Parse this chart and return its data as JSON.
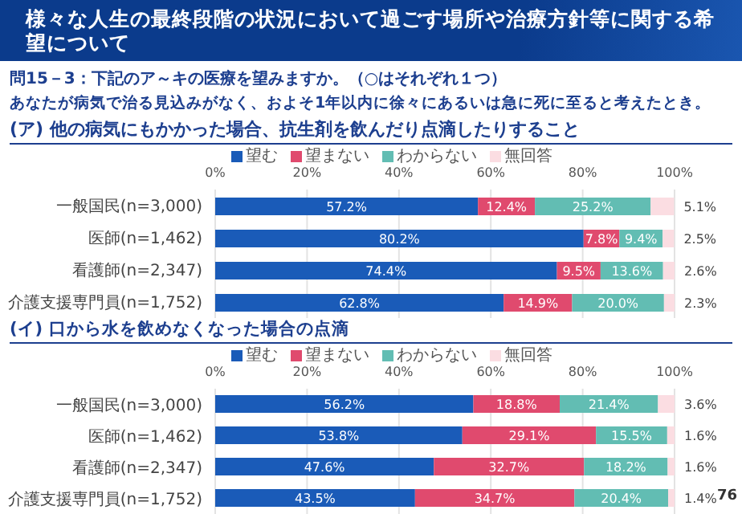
{
  "chart_data": [
    {
      "type": "bar",
      "orientation": "horizontal",
      "stacked": true,
      "title": "様々な人生の最終段階の状況において過ごす場所や治療方針等に関する希望について",
      "subtitle": "問15－3：下記のア～キの医療を望みますか。（○はそれぞれ１つ）",
      "annotations": [
        "あなたが病気で治る見込みがなく、およそ1年以内に徐々にあるいは急に死に至ると考えたとき。",
        "(ア) 他の病気にもかかった場合、抗生剤を飲んだり点滴したりすること"
      ],
      "categories": [
        "一般国民(n=3,000)",
        "医師(n=1,462)",
        "看護師(n=2,347)",
        "介護支援専門員(n=1,752)"
      ],
      "xlim": [
        0,
        100
      ],
      "xticks": [
        {
          "value": 0,
          "label": "0%"
        },
        {
          "value": 20,
          "label": "20%"
        },
        {
          "value": 40,
          "label": "40%"
        },
        {
          "value": 60,
          "label": "60%"
        },
        {
          "value": 80,
          "label": "80%"
        },
        {
          "value": 100,
          "label": "100%"
        }
      ],
      "grid": "x",
      "legend": "top",
      "series": [
        {
          "name": "望む",
          "color": "#1a5bb8",
          "values": [
            57.2,
            80.2,
            74.4,
            62.8
          ],
          "value_labels": [
            "57.2%",
            "80.2%",
            "74.4%",
            "62.8%"
          ]
        },
        {
          "name": "望まない",
          "color": "#e04a6e",
          "values": [
            12.4,
            7.8,
            9.5,
            14.9
          ],
          "value_labels": [
            "12.4%",
            "7.8%",
            "9.5%",
            "14.9%"
          ]
        },
        {
          "name": "わからない",
          "color": "#62bdb3",
          "values": [
            25.2,
            9.4,
            13.6,
            20.0
          ],
          "value_labels": [
            "25.2%",
            "9.4%",
            "13.6%",
            "20.0%"
          ]
        },
        {
          "name": "無回答",
          "color": "#fbdde2",
          "values": [
            5.1,
            2.5,
            2.6,
            2.3
          ],
          "value_labels": [
            "5.1%",
            "2.5%",
            "2.6%",
            "2.3%"
          ]
        }
      ]
    },
    {
      "type": "bar",
      "orientation": "horizontal",
      "stacked": true,
      "title": "(イ) 口から水を飲めなくなった場合の点滴",
      "annotations": [
        "76"
      ],
      "categories": [
        "一般国民(n=3,000)",
        "医師(n=1,462)",
        "看護師(n=2,347)",
        "介護支援専門員(n=1,752)"
      ],
      "xlim": [
        0,
        100
      ],
      "xticks": [
        {
          "value": 0,
          "label": "0%"
        },
        {
          "value": 20,
          "label": "20%"
        },
        {
          "value": 40,
          "label": "40%"
        },
        {
          "value": 60,
          "label": "60%"
        },
        {
          "value": 80,
          "label": "80%"
        },
        {
          "value": 100,
          "label": "100%"
        }
      ],
      "grid": "x",
      "legend": "top",
      "series": [
        {
          "name": "望む",
          "color": "#1a5bb8",
          "values": [
            56.2,
            53.8,
            47.6,
            43.5
          ],
          "value_labels": [
            "56.2%",
            "53.8%",
            "47.6%",
            "43.5%"
          ]
        },
        {
          "name": "望まない",
          "color": "#e04a6e",
          "values": [
            18.8,
            29.1,
            32.7,
            34.7
          ],
          "value_labels": [
            "18.8%",
            "29.1%",
            "32.7%",
            "34.7%"
          ]
        },
        {
          "name": "わからない",
          "color": "#62bdb3",
          "values": [
            21.4,
            15.5,
            18.2,
            20.4
          ],
          "value_labels": [
            "21.4%",
            "15.5%",
            "18.2%",
            "20.4%"
          ]
        },
        {
          "name": "無回答",
          "color": "#fbdde2",
          "values": [
            3.6,
            1.6,
            1.6,
            1.4
          ],
          "value_labels": [
            "3.6%",
            "1.6%",
            "1.6%",
            "1.4%"
          ]
        }
      ]
    }
  ]
}
